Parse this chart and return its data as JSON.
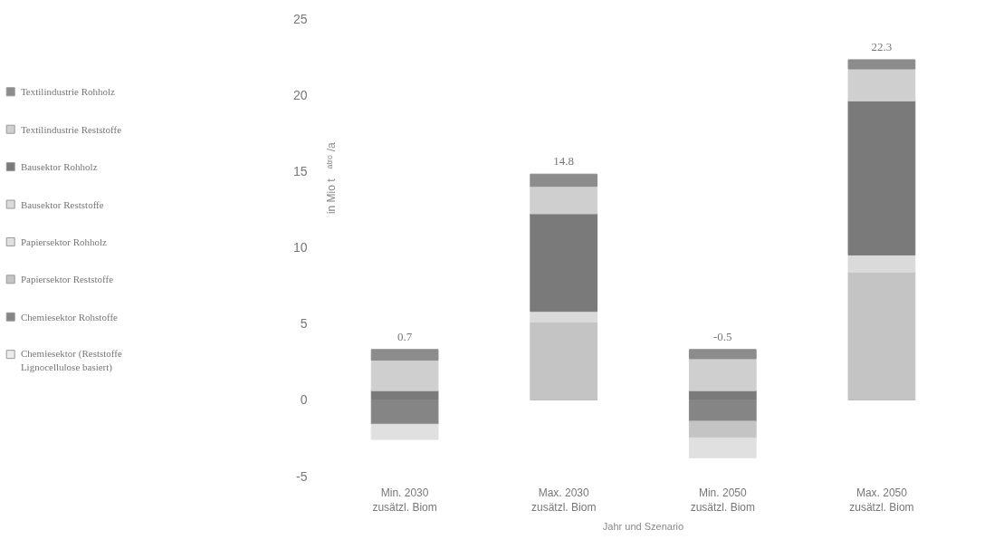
{
  "chart_data": {
    "type": "bar",
    "stacked": true,
    "xlabel": "Jahr und Szenario",
    "ylabel": "in Mio t$_{atro}$/a",
    "categories": [
      "Min. 2030\nzusätzl. Biom",
      "Max. 2030\nzusätzl. Biom",
      "Min. 2050\nzusätzl. Biom",
      "Max. 2050\nzusätzl. Biom"
    ],
    "series": [
      {
        "name": "Chemiesektor (Reststoffe\nLignocellulose basiert)",
        "color": "#ececec",
        "values": [
          0,
          0,
          0,
          0
        ]
      },
      {
        "name": "Chemiesektor Rohstoffe",
        "color": "#858585",
        "values": [
          -1.6,
          0,
          -1.4,
          0
        ]
      },
      {
        "name": "Papiersektor Reststoffe",
        "color": "#c4c4c4",
        "values": [
          0,
          5.1,
          -1.1,
          8.4
        ]
      },
      {
        "name": "Papiersektor Rohholz",
        "color": "#e0e0e0",
        "values": [
          -1.0,
          0,
          -1.3,
          0
        ]
      },
      {
        "name": "Bausektor Reststoffe",
        "color": "#dadada",
        "values": [
          0,
          0.7,
          0,
          1.1
        ]
      },
      {
        "name": "Bausektor Rohholz",
        "color": "#7a7a7a",
        "values": [
          0.6,
          6.4,
          0.6,
          10.1
        ]
      },
      {
        "name": "Textilindustrie Reststoffe",
        "color": "#cfcfcf",
        "values": [
          2.0,
          1.8,
          2.1,
          2.1
        ]
      },
      {
        "name": "Textilindustrie Rohholz",
        "color": "#8c8c8c",
        "values": [
          0.7,
          0.8,
          0.6,
          0.6
        ]
      }
    ],
    "totals": [
      "0.7",
      "14.8",
      "-0.5",
      "22.3"
    ],
    "ylim": [
      -5,
      25
    ],
    "yticks": [
      -5,
      0,
      5,
      10,
      15,
      20,
      25
    ],
    "grid": false,
    "legend": "left"
  }
}
